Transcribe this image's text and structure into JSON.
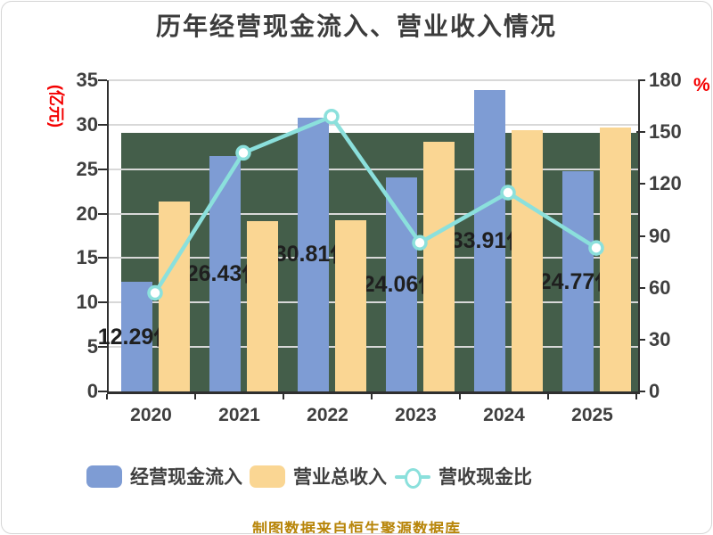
{
  "chart_data": {
    "type": "bar+line combo",
    "title": "历年经营现金流入、营业收入情况",
    "categories": [
      "2020",
      "2021",
      "2022",
      "2023",
      "2024",
      "2025"
    ],
    "series": [
      {
        "name": "经营现金流入",
        "type": "bar",
        "axis": "left",
        "values": [
          12.29,
          26.43,
          30.81,
          24.06,
          33.91,
          24.77
        ],
        "labels": [
          "12.29亿",
          "26.43亿",
          "30.81亿",
          "24.06亿",
          "33.91亿",
          "24.77亿"
        ]
      },
      {
        "name": "营业总收入",
        "type": "bar",
        "axis": "left",
        "values": [
          21.4,
          19.2,
          19.3,
          28.1,
          29.4,
          29.7
        ],
        "values_estimated": true
      },
      {
        "name": "营收现金比",
        "type": "line",
        "axis": "right",
        "values": [
          57,
          138,
          159,
          86,
          115,
          83
        ],
        "values_estimated": true
      }
    ],
    "left_axis": {
      "label": "(亿元)",
      "min": 0,
      "max": 35,
      "step": 5
    },
    "right_axis": {
      "label": "%",
      "min": 0,
      "max": 180,
      "step": 30
    },
    "legend_position": "bottom",
    "grid": true
  },
  "footer": "制图数据来自恒生聚源数据库",
  "colors": {
    "bar_blue": "#7E9CD4",
    "bar_orange": "#FAD693",
    "line_teal": "#8BE0DC",
    "marker_fill": "#FFFFFF",
    "title_text": "#3C3C3C",
    "axis_text": "#3F3F3F",
    "label_text": "#1F1F1F",
    "red_accent": "#F40000",
    "footer_gold": "#B8860B",
    "plot_green": "#445E4A",
    "gridline": "#D8D8D8",
    "axis_line": "#2F2F2F"
  }
}
